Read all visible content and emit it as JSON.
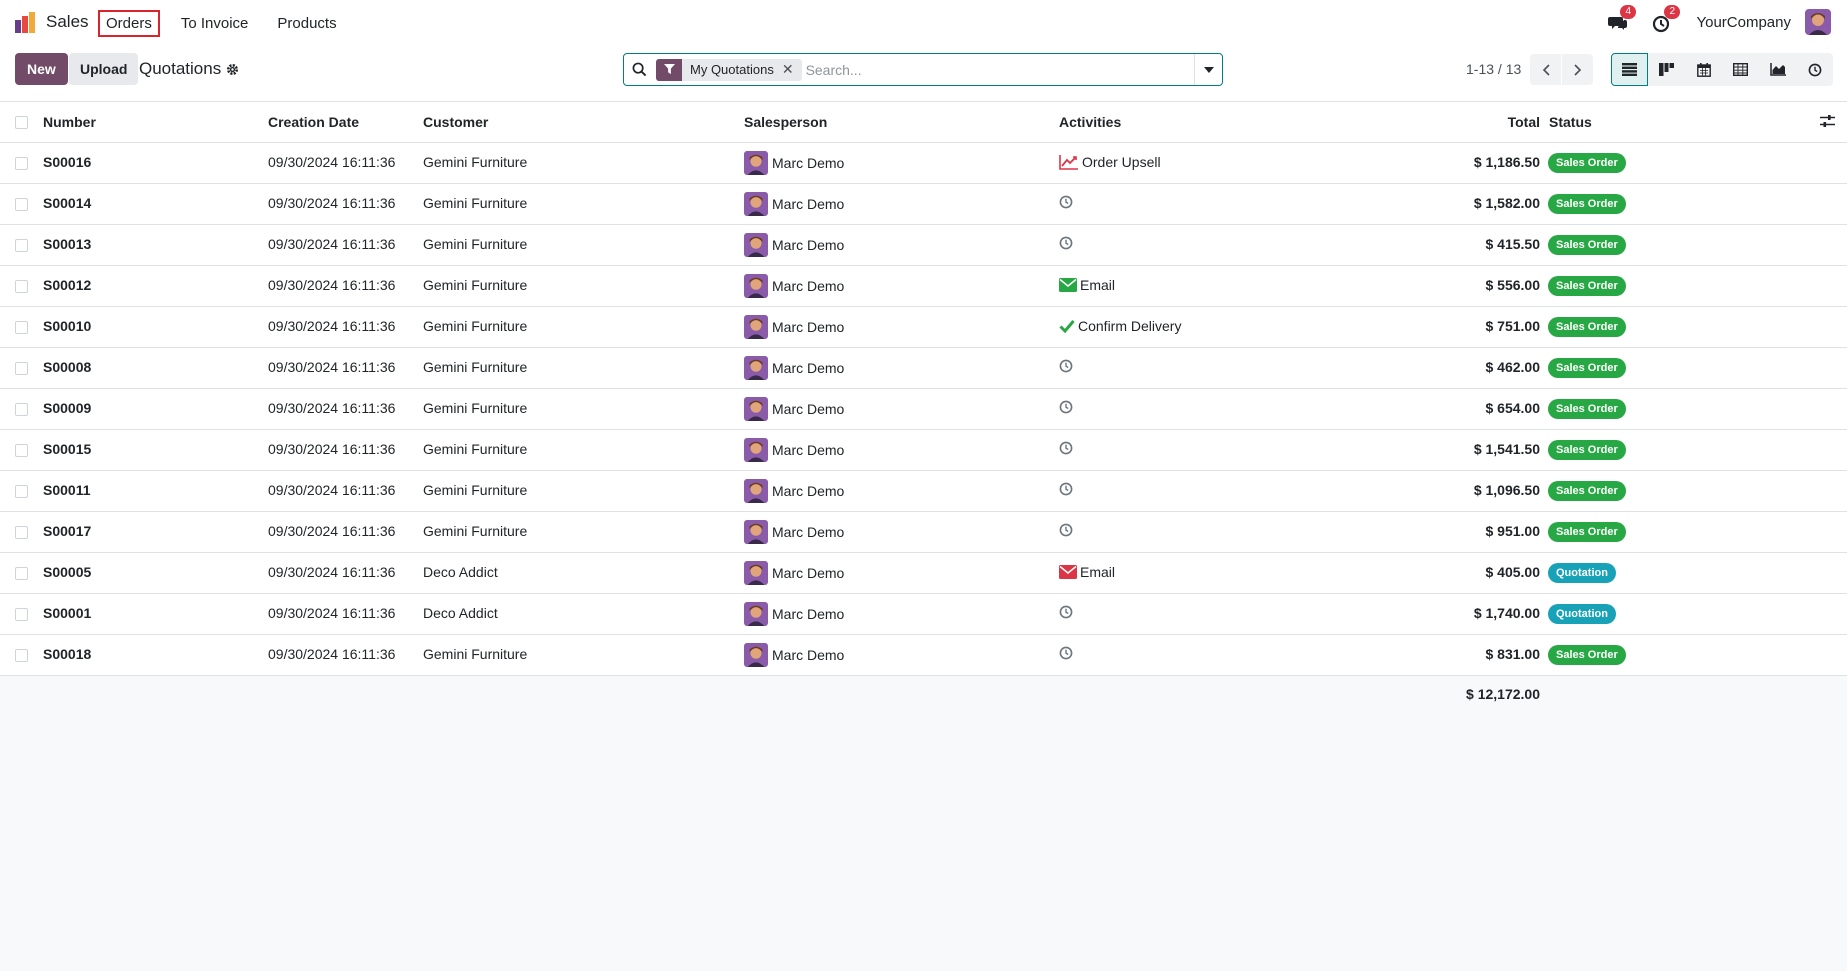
{
  "app": {
    "name": "Sales"
  },
  "nav": {
    "items": [
      "Orders",
      "To Invoice",
      "Products"
    ],
    "active_index": 0
  },
  "systray": {
    "messages_count": "4",
    "activities_count": "2",
    "company": "YourCompany"
  },
  "control": {
    "new_label": "New",
    "upload_label": "Upload",
    "breadcrumb": "Quotations",
    "facet_label": "My Quotations",
    "search_placeholder": "Search...",
    "pager": "1-13 / 13"
  },
  "table": {
    "headers": {
      "number": "Number",
      "creation_date": "Creation Date",
      "customer": "Customer",
      "salesperson": "Salesperson",
      "activities": "Activities",
      "total": "Total",
      "status": "Status"
    },
    "rows": [
      {
        "number": "S00016",
        "date": "09/30/2024 16:11:36",
        "customer": "Gemini Furniture",
        "salesperson": "Marc Demo",
        "activity_icon": "upsell-chart-icon",
        "activity": "Order Upsell",
        "total": "$ 1,186.50",
        "status": "Sales Order"
      },
      {
        "number": "S00014",
        "date": "09/30/2024 16:11:36",
        "customer": "Gemini Furniture",
        "salesperson": "Marc Demo",
        "activity_icon": "clock-icon",
        "activity": "",
        "total": "$ 1,582.00",
        "status": "Sales Order"
      },
      {
        "number": "S00013",
        "date": "09/30/2024 16:11:36",
        "customer": "Gemini Furniture",
        "salesperson": "Marc Demo",
        "activity_icon": "clock-icon",
        "activity": "",
        "total": "$ 415.50",
        "status": "Sales Order"
      },
      {
        "number": "S00012",
        "date": "09/30/2024 16:11:36",
        "customer": "Gemini Furniture",
        "salesperson": "Marc Demo",
        "activity_icon": "email-green-icon",
        "activity": "Email",
        "total": "$ 556.00",
        "status": "Sales Order"
      },
      {
        "number": "S00010",
        "date": "09/30/2024 16:11:36",
        "customer": "Gemini Furniture",
        "salesperson": "Marc Demo",
        "activity_icon": "check-icon",
        "activity": "Confirm Delivery",
        "total": "$ 751.00",
        "status": "Sales Order"
      },
      {
        "number": "S00008",
        "date": "09/30/2024 16:11:36",
        "customer": "Gemini Furniture",
        "salesperson": "Marc Demo",
        "activity_icon": "clock-icon",
        "activity": "",
        "total": "$ 462.00",
        "status": "Sales Order"
      },
      {
        "number": "S00009",
        "date": "09/30/2024 16:11:36",
        "customer": "Gemini Furniture",
        "salesperson": "Marc Demo",
        "activity_icon": "clock-icon",
        "activity": "",
        "total": "$ 654.00",
        "status": "Sales Order"
      },
      {
        "number": "S00015",
        "date": "09/30/2024 16:11:36",
        "customer": "Gemini Furniture",
        "salesperson": "Marc Demo",
        "activity_icon": "clock-icon",
        "activity": "",
        "total": "$ 1,541.50",
        "status": "Sales Order"
      },
      {
        "number": "S00011",
        "date": "09/30/2024 16:11:36",
        "customer": "Gemini Furniture",
        "salesperson": "Marc Demo",
        "activity_icon": "clock-icon",
        "activity": "",
        "total": "$ 1,096.50",
        "status": "Sales Order"
      },
      {
        "number": "S00017",
        "date": "09/30/2024 16:11:36",
        "customer": "Gemini Furniture",
        "salesperson": "Marc Demo",
        "activity_icon": "clock-icon",
        "activity": "",
        "total": "$ 951.00",
        "status": "Sales Order"
      },
      {
        "number": "S00005",
        "date": "09/30/2024 16:11:36",
        "customer": "Deco Addict",
        "salesperson": "Marc Demo",
        "activity_icon": "email-red-icon",
        "activity": "Email",
        "total": "$ 405.00",
        "status": "Quotation"
      },
      {
        "number": "S00001",
        "date": "09/30/2024 16:11:36",
        "customer": "Deco Addict",
        "salesperson": "Marc Demo",
        "activity_icon": "clock-icon",
        "activity": "",
        "total": "$ 1,740.00",
        "status": "Quotation"
      },
      {
        "number": "S00018",
        "date": "09/30/2024 16:11:36",
        "customer": "Gemini Furniture",
        "salesperson": "Marc Demo",
        "activity_icon": "clock-icon",
        "activity": "",
        "total": "$ 831.00",
        "status": "Sales Order"
      }
    ],
    "grand_total": "$ 12,172.00"
  },
  "colors": {
    "brand": "#714b67",
    "accent": "#017e84",
    "sales_order": "#28a745",
    "quotation": "#17a2b8",
    "danger": "#dc3545"
  }
}
